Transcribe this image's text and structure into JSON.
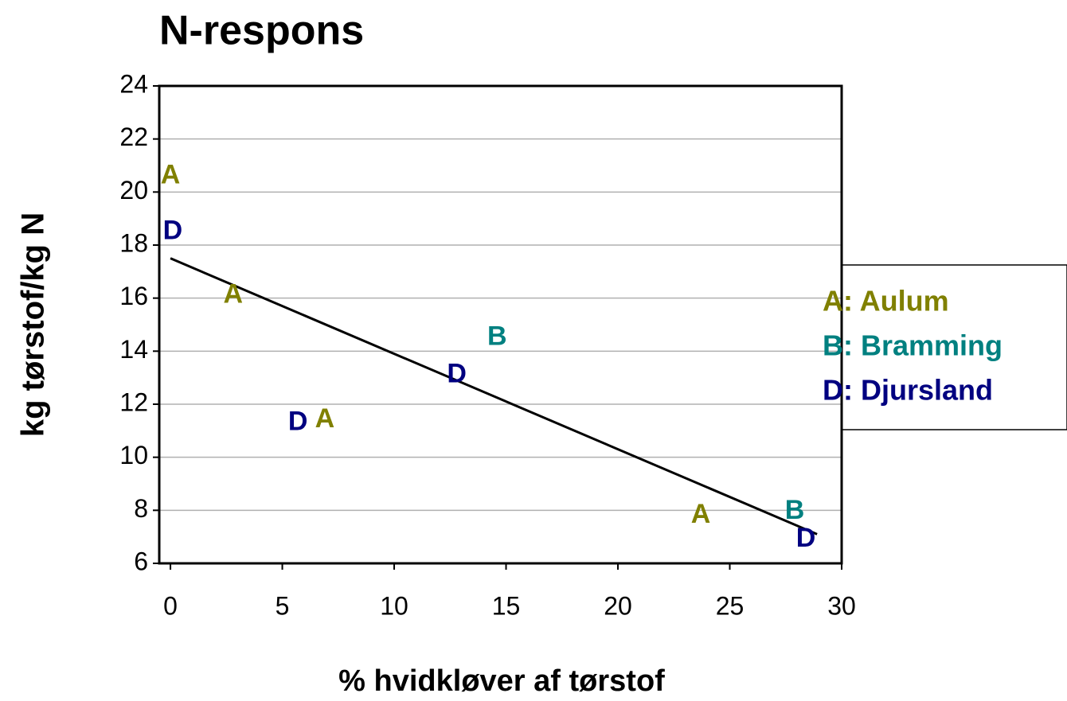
{
  "chart_data": {
    "type": "scatter",
    "title": "N-respons",
    "x_label": "% hvidkløver af tørstof",
    "y_label": "kg tørstof/kg N",
    "xlim": [
      -0.5,
      30
    ],
    "ylim": [
      6,
      24
    ],
    "xticks": [
      0,
      5,
      10,
      15,
      20,
      25,
      30
    ],
    "yticks": [
      6,
      8,
      10,
      12,
      14,
      16,
      18,
      20,
      22,
      24
    ],
    "grid": true,
    "legend": "right",
    "series": [
      {
        "name": "A: Aulum",
        "marker": "A",
        "color": "#808000",
        "x": [
          0,
          2.8,
          6.9,
          23.7
        ],
        "values": [
          20.6,
          16.1,
          11.4,
          7.8
        ]
      },
      {
        "name": "B: Bramming",
        "marker": "B",
        "color": "#008080",
        "x": [
          14.6,
          27.9
        ],
        "values": [
          14.5,
          7.95
        ]
      },
      {
        "name": "D: Djursland",
        "marker": "D",
        "color": "#000080",
        "x": [
          0.1,
          12.8,
          5.7,
          28.4
        ],
        "values": [
          18.5,
          13.1,
          11.3,
          6.9
        ]
      }
    ],
    "trendline": {
      "x": [
        0,
        28.9
      ],
      "values": [
        17.5,
        7.1
      ],
      "color": "#000000"
    }
  }
}
